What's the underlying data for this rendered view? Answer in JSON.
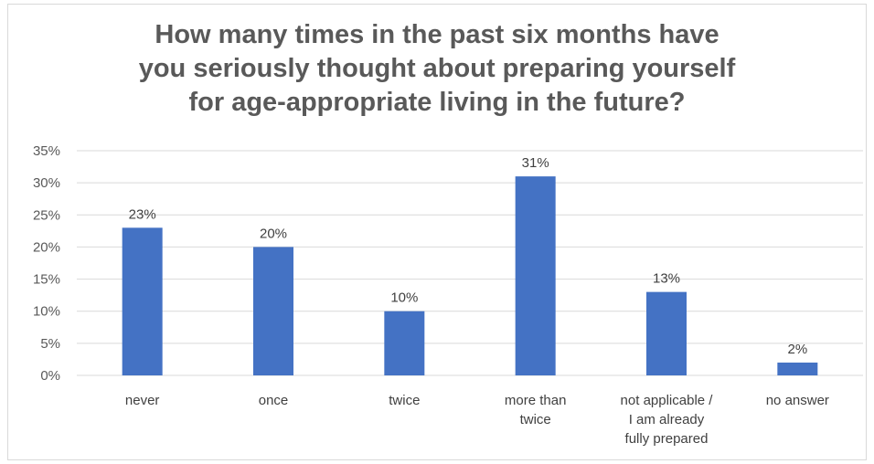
{
  "chart_data": {
    "type": "bar",
    "title_lines": [
      "How many times in the past six months have",
      "you seriously thought about preparing yourself",
      "for age-appropriate living in the future?"
    ],
    "categories": [
      [
        "never"
      ],
      [
        "once"
      ],
      [
        "twice"
      ],
      [
        "more than",
        "twice"
      ],
      [
        "not applicable /",
        "I am already",
        "fully prepared"
      ],
      [
        "no answer"
      ]
    ],
    "values": [
      23,
      20,
      10,
      31,
      13,
      2
    ],
    "value_labels": [
      "23%",
      "20%",
      "10%",
      "31%",
      "13%",
      "2%"
    ],
    "yticks": [
      "0%",
      "5%",
      "10%",
      "15%",
      "20%",
      "25%",
      "30%",
      "35%"
    ],
    "ylim": [
      0,
      35
    ],
    "grid": true,
    "bar_color": "#4472C4",
    "grid_color": "#d9d9d9"
  }
}
